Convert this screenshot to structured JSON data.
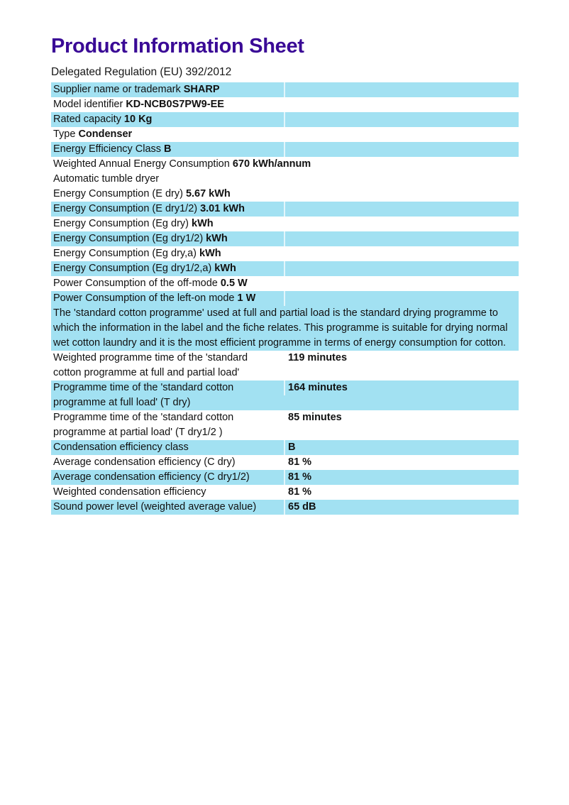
{
  "page": {
    "title": "Product Information Sheet",
    "subtitle": "Delegated Regulation (EU) 392/2012"
  },
  "colors": {
    "highlight": "#a2e1f2",
    "title_purple": "#3a0a96",
    "text": "#111111"
  },
  "rows": [
    {
      "label": "Supplier name or trademark",
      "value": "SHARP"
    },
    {
      "label": "Model identifier",
      "value": "KD-NCB0S7PW9-EE"
    },
    {
      "label": "Rated capacity",
      "value": "10 Kg"
    },
    {
      "label": "Type",
      "value": "Condenser"
    },
    {
      "label": "Energy Efficiency Class",
      "value": "B"
    },
    {
      "label": "Weighted Annual Energy Consumption",
      "value": "670 kWh/annum"
    },
    {
      "label": "Automatic tumble dryer",
      "value": ""
    },
    {
      "label": "Energy Consumption (E dry)",
      "value": "5.67 kWh"
    },
    {
      "label": "Energy Consumption (E dry1/2)",
      "value": "3.01 kWh"
    },
    {
      "label": "Energy Consumption (Eg dry)",
      "value": "kWh"
    },
    {
      "label": "Energy Consumption (Eg dry1/2)",
      "value": "kWh"
    },
    {
      "label": "Energy Consumption (Eg dry,a)",
      "value": "kWh"
    },
    {
      "label": "Energy Consumption (Eg dry1/2,a)",
      "value": "kWh"
    },
    {
      "label": "Power Consumption of the off-mode",
      "value": "0.5 W"
    },
    {
      "label": "Power Consumption of the left-on mode",
      "value": "1 W"
    },
    {
      "label": "The 'standard cotton programme' used at full and partial load is the standard drying programme to which the information in the label and the fiche relates. This programme is suitable for drying normal wet cotton laundry and it is the most efficient programme in terms of energy consumption for cotton.",
      "value": ""
    },
    {
      "label": "Weighted programme time of the 'standard cotton programme at full and partial load'",
      "value": "119 minutes"
    },
    {
      "label": "Programme time of the 'standard cotton programme at full load' (T dry)",
      "value": "164 minutes"
    },
    {
      "label": "Programme time of the 'standard cotton programme at partial load' (T dry1/2 )",
      "value": "85 minutes"
    },
    {
      "label": "Condensation efficiency class",
      "value": "B"
    },
    {
      "label": "Average condensation efficiency (C dry)",
      "value": "81 %"
    },
    {
      "label": "Average condensation efficiency (C dry1/2)",
      "value": "81 %"
    },
    {
      "label": "Weighted condensation efficiency",
      "value": "81 %"
    },
    {
      "label": "Sound power level (weighted average value)",
      "value": "65 dB"
    }
  ]
}
